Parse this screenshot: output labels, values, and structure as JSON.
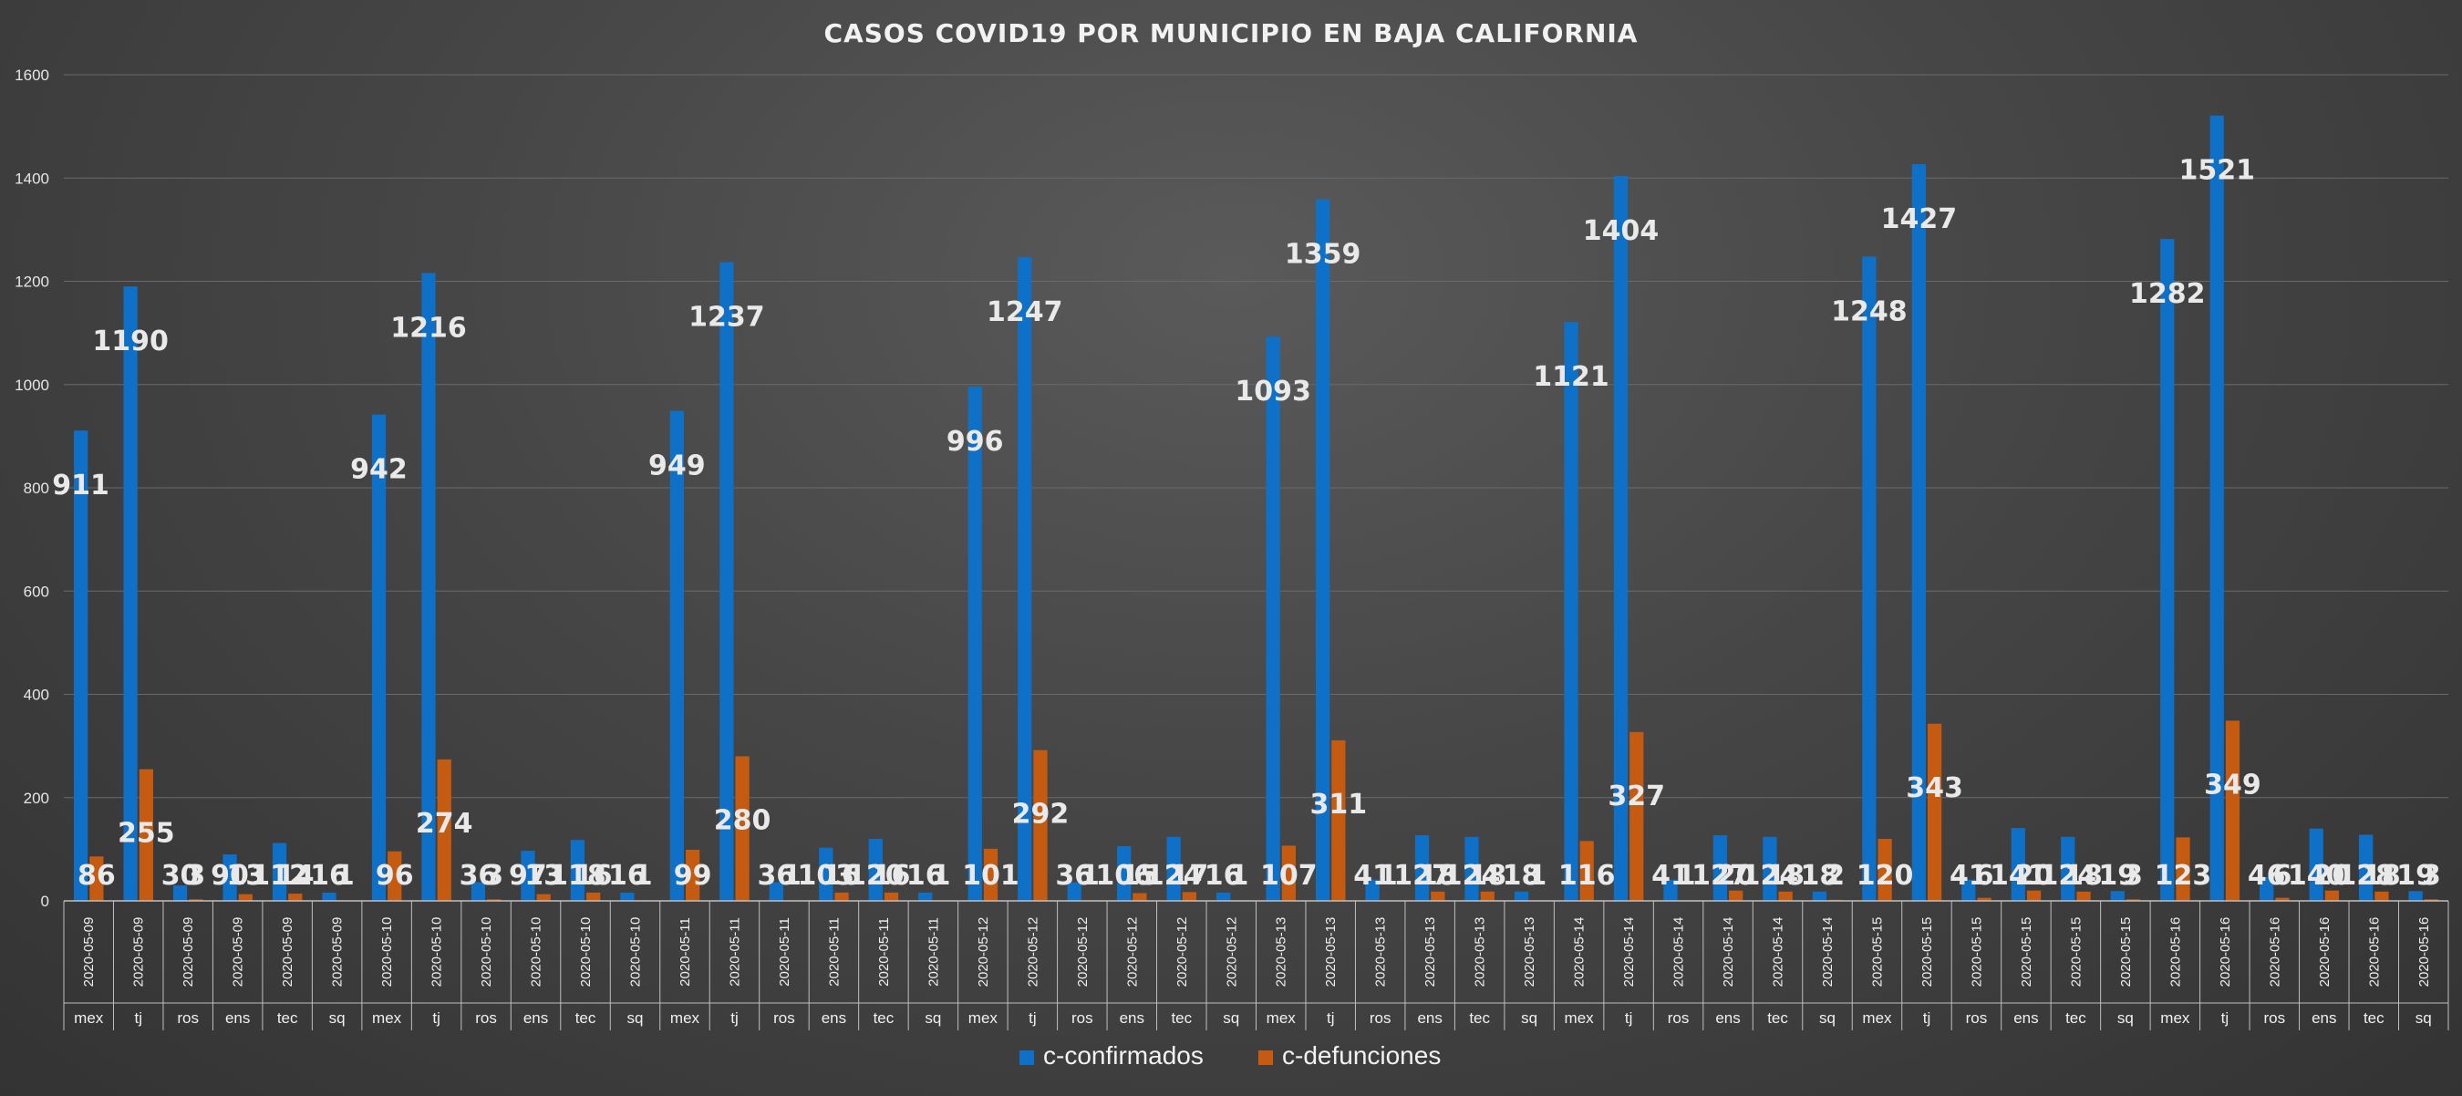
{
  "colors": {
    "confirmados": "#0f70c7",
    "defunciones": "#c55a11",
    "grid": "#6a6a6a",
    "text": "#f2f2f2"
  },
  "chart_data": {
    "type": "bar",
    "title": "CASOS COVID19 POR MUNICIPIO EN BAJA CALIFORNIA",
    "ylim": [
      0,
      1600
    ],
    "yticks": [
      0,
      200,
      400,
      600,
      800,
      1000,
      1200,
      1400,
      1600
    ],
    "grid": true,
    "legend_position": "bottom",
    "categories": [
      {
        "date": "2020-05-09",
        "municipio": "mex"
      },
      {
        "date": "2020-05-09",
        "municipio": "tj"
      },
      {
        "date": "2020-05-09",
        "municipio": "ros"
      },
      {
        "date": "2020-05-09",
        "municipio": "ens"
      },
      {
        "date": "2020-05-09",
        "municipio": "tec"
      },
      {
        "date": "2020-05-09",
        "municipio": "sq"
      },
      {
        "date": "2020-05-10",
        "municipio": "mex"
      },
      {
        "date": "2020-05-10",
        "municipio": "tj"
      },
      {
        "date": "2020-05-10",
        "municipio": "ros"
      },
      {
        "date": "2020-05-10",
        "municipio": "ens"
      },
      {
        "date": "2020-05-10",
        "municipio": "tec"
      },
      {
        "date": "2020-05-10",
        "municipio": "sq"
      },
      {
        "date": "2020-05-11",
        "municipio": "mex"
      },
      {
        "date": "2020-05-11",
        "municipio": "tj"
      },
      {
        "date": "2020-05-11",
        "municipio": "ros"
      },
      {
        "date": "2020-05-11",
        "municipio": "ens"
      },
      {
        "date": "2020-05-11",
        "municipio": "tec"
      },
      {
        "date": "2020-05-11",
        "municipio": "sq"
      },
      {
        "date": "2020-05-12",
        "municipio": "mex"
      },
      {
        "date": "2020-05-12",
        "municipio": "tj"
      },
      {
        "date": "2020-05-12",
        "municipio": "ros"
      },
      {
        "date": "2020-05-12",
        "municipio": "ens"
      },
      {
        "date": "2020-05-12",
        "municipio": "tec"
      },
      {
        "date": "2020-05-12",
        "municipio": "sq"
      },
      {
        "date": "2020-05-13",
        "municipio": "mex"
      },
      {
        "date": "2020-05-13",
        "municipio": "tj"
      },
      {
        "date": "2020-05-13",
        "municipio": "ros"
      },
      {
        "date": "2020-05-13",
        "municipio": "ens"
      },
      {
        "date": "2020-05-13",
        "municipio": "tec"
      },
      {
        "date": "2020-05-13",
        "municipio": "sq"
      },
      {
        "date": "2020-05-14",
        "municipio": "mex"
      },
      {
        "date": "2020-05-14",
        "municipio": "tj"
      },
      {
        "date": "2020-05-14",
        "municipio": "ros"
      },
      {
        "date": "2020-05-14",
        "municipio": "ens"
      },
      {
        "date": "2020-05-14",
        "municipio": "tec"
      },
      {
        "date": "2020-05-14",
        "municipio": "sq"
      },
      {
        "date": "2020-05-15",
        "municipio": "mex"
      },
      {
        "date": "2020-05-15",
        "municipio": "tj"
      },
      {
        "date": "2020-05-15",
        "municipio": "ros"
      },
      {
        "date": "2020-05-15",
        "municipio": "ens"
      },
      {
        "date": "2020-05-15",
        "municipio": "tec"
      },
      {
        "date": "2020-05-15",
        "municipio": "sq"
      },
      {
        "date": "2020-05-16",
        "municipio": "mex"
      },
      {
        "date": "2020-05-16",
        "municipio": "tj"
      },
      {
        "date": "2020-05-16",
        "municipio": "ros"
      },
      {
        "date": "2020-05-16",
        "municipio": "ens"
      },
      {
        "date": "2020-05-16",
        "municipio": "tec"
      },
      {
        "date": "2020-05-16",
        "municipio": "sq"
      }
    ],
    "series": [
      {
        "name": "c-confirmados",
        "values": [
          911,
          1190,
          30,
          90,
          112,
          16,
          942,
          1216,
          36,
          97,
          118,
          16,
          949,
          1237,
          36,
          103,
          120,
          16,
          996,
          1247,
          36,
          106,
          124,
          16,
          1093,
          1359,
          41,
          127,
          124,
          18,
          1121,
          1404,
          41,
          127,
          124,
          18,
          1248,
          1427,
          41,
          141,
          124,
          19,
          1282,
          1521,
          46,
          140,
          128,
          19
        ]
      },
      {
        "name": "c-defunciones",
        "values": [
          86,
          255,
          3,
          13,
          14,
          1,
          96,
          274,
          3,
          13,
          16,
          1,
          99,
          280,
          1,
          16,
          16,
          1,
          101,
          292,
          1,
          15,
          17,
          1,
          107,
          311,
          1,
          18,
          18,
          1,
          116,
          327,
          1,
          20,
          18,
          2,
          120,
          343,
          6,
          20,
          18,
          3,
          123,
          349,
          6,
          20,
          18,
          3
        ]
      }
    ]
  }
}
